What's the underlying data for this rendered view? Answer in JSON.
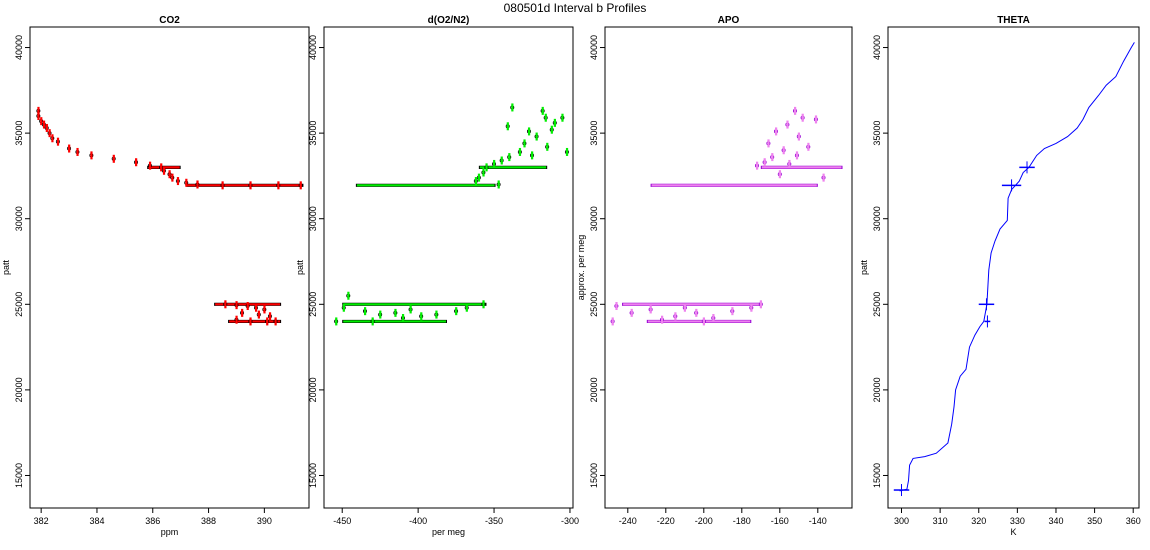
{
  "figure": {
    "title": "080501d   Interval b Profiles"
  },
  "chart_data": [
    {
      "type": "scatter",
      "title": "CO2",
      "xlabel": "ppm",
      "ylabel": "patt",
      "xlim": [
        381.6,
        391.6
      ],
      "ylim": [
        13100,
        41200
      ],
      "x_ticks": [
        382,
        384,
        386,
        388,
        390
      ],
      "y_ticks": [
        15000,
        20000,
        25000,
        30000,
        35000,
        40000
      ],
      "colors": {
        "primary": "#ff0000",
        "secondary": "#000000"
      },
      "series": [
        {
          "name": "",
          "points": [
            [
              381.9,
              36300
            ],
            [
              381.9,
              36000
            ],
            [
              382.0,
              35700
            ],
            [
              382.1,
              35500
            ],
            [
              382.2,
              35300
            ],
            [
              382.3,
              35000
            ],
            [
              382.4,
              34700
            ],
            [
              382.6,
              34500
            ],
            [
              383.0,
              34100
            ],
            [
              383.3,
              33900
            ],
            [
              383.8,
              33700
            ],
            [
              384.6,
              33500
            ],
            [
              385.4,
              33300
            ],
            [
              385.9,
              33100
            ],
            [
              386.3,
              33000
            ],
            [
              386.4,
              32800
            ],
            [
              386.6,
              32600
            ],
            [
              386.7,
              32400
            ],
            [
              386.9,
              32200
            ],
            [
              387.2,
              32100
            ],
            [
              387.6,
              32000
            ],
            [
              388.5,
              31950
            ],
            [
              389.5,
              31950
            ],
            [
              390.5,
              31950
            ],
            [
              391.3,
              31950
            ],
            [
              388.6,
              25000
            ],
            [
              389.0,
              24950
            ],
            [
              389.4,
              24900
            ],
            [
              389.7,
              24800
            ],
            [
              390.0,
              24700
            ],
            [
              389.2,
              24500
            ],
            [
              389.8,
              24400
            ],
            [
              390.2,
              24300
            ],
            [
              389.0,
              24100
            ],
            [
              389.5,
              24000
            ],
            [
              390.1,
              24000
            ],
            [
              390.4,
              24000
            ]
          ]
        }
      ],
      "segments": [
        {
          "y": 31950,
          "x": [
            387.2,
            391.4
          ]
        },
        {
          "y": 33000,
          "x": [
            385.8,
            387.0
          ]
        },
        {
          "y": 25000,
          "x": [
            388.2,
            390.6
          ]
        },
        {
          "y": 24000,
          "x": [
            388.7,
            390.6
          ]
        }
      ]
    },
    {
      "type": "scatter",
      "title": "d(O2/N2)",
      "xlabel": "per meg",
      "ylabel": "patt",
      "xlim": [
        -462,
        -298
      ],
      "ylim": [
        13100,
        41200
      ],
      "x_ticks": [
        -450,
        -400,
        -350,
        -300
      ],
      "y_ticks": [
        15000,
        20000,
        25000,
        30000,
        35000,
        40000
      ],
      "colors": {
        "primary": "#00ee00",
        "secondary": "#000000"
      },
      "series": [
        {
          "name": "",
          "points": [
            [
              -338,
              36500
            ],
            [
              -318,
              36300
            ],
            [
              -316,
              35900
            ],
            [
              -310,
              35600
            ],
            [
              -305,
              35900
            ],
            [
              -312,
              35200
            ],
            [
              -322,
              34800
            ],
            [
              -330,
              34400
            ],
            [
              -315,
              34200
            ],
            [
              -333,
              33900
            ],
            [
              -340,
              33600
            ],
            [
              -345,
              33400
            ],
            [
              -350,
              33200
            ],
            [
              -355,
              33000
            ],
            [
              -357,
              32700
            ],
            [
              -360,
              32400
            ],
            [
              -362,
              32200
            ],
            [
              -347,
              32000
            ],
            [
              -325,
              33700
            ],
            [
              -302,
              33900
            ],
            [
              -341,
              35400
            ],
            [
              -327,
              35100
            ],
            [
              -454,
              24000
            ],
            [
              -446,
              25500
            ],
            [
              -449,
              24800
            ],
            [
              -435,
              24600
            ],
            [
              -425,
              24400
            ],
            [
              -410,
              24200
            ],
            [
              -398,
              24300
            ],
            [
              -388,
              24400
            ],
            [
              -375,
              24600
            ],
            [
              -368,
              24800
            ],
            [
              -357,
              25000
            ],
            [
              -415,
              24500
            ],
            [
              -430,
              24000
            ],
            [
              -405,
              24700
            ]
          ]
        }
      ],
      "segments": [
        {
          "y": 31950,
          "x": [
            -441,
            -349
          ]
        },
        {
          "y": 33000,
          "x": [
            -360,
            -315
          ]
        },
        {
          "y": 25000,
          "x": [
            -450,
            -355
          ]
        },
        {
          "y": 24000,
          "x": [
            -450,
            -381
          ]
        }
      ]
    },
    {
      "type": "scatter",
      "title": "APO",
      "xlabel": "",
      "ylabel": "approx. per meg",
      "xlim": [
        -252,
        -122
      ],
      "ylim": [
        13100,
        41200
      ],
      "x_ticks": [
        -240,
        -220,
        -200,
        -180,
        -160,
        -140
      ],
      "y_ticks": [
        15000,
        20000,
        25000,
        30000,
        35000,
        40000
      ],
      "colors": {
        "primary": "#ee82ee",
        "secondary": "#9400d3"
      },
      "series": [
        {
          "name": "",
          "points": [
            [
              -152,
              36300
            ],
            [
              -148,
              35900
            ],
            [
              -141,
              35800
            ],
            [
              -156,
              35500
            ],
            [
              -162,
              35100
            ],
            [
              -150,
              34800
            ],
            [
              -166,
              34400
            ],
            [
              -145,
              34200
            ],
            [
              -158,
              34000
            ],
            [
              -164,
              33600
            ],
            [
              -168,
              33300
            ],
            [
              -155,
              33200
            ],
            [
              -172,
              33100
            ],
            [
              -151,
              33700
            ],
            [
              -160,
              32600
            ],
            [
              -137,
              32400
            ],
            [
              -246,
              24900
            ],
            [
              -248,
              24000
            ],
            [
              -238,
              24500
            ],
            [
              -228,
              24700
            ],
            [
              -215,
              24300
            ],
            [
              -204,
              24500
            ],
            [
              -195,
              24200
            ],
            [
              -185,
              24600
            ],
            [
              -175,
              24800
            ],
            [
              -170,
              25000
            ],
            [
              -222,
              24100
            ],
            [
              -210,
              24800
            ],
            [
              -200,
              24000
            ]
          ]
        }
      ],
      "segments": [
        {
          "y": 31950,
          "x": [
            -228,
            -140
          ]
        },
        {
          "y": 33000,
          "x": [
            -170,
            -127
          ]
        },
        {
          "y": 25000,
          "x": [
            -243,
            -170
          ]
        },
        {
          "y": 24000,
          "x": [
            -230,
            -175
          ]
        }
      ]
    },
    {
      "type": "line",
      "title": "THETA",
      "xlabel": "K",
      "ylabel": "patt",
      "xlim": [
        296.5,
        361.5
      ],
      "ylim": [
        13100,
        41200
      ],
      "x_ticks": [
        300,
        310,
        320,
        330,
        340,
        350,
        360
      ],
      "y_ticks": [
        15000,
        20000,
        25000,
        30000,
        35000,
        40000
      ],
      "colors": {
        "primary": "#0000ff"
      },
      "series": [
        {
          "name": "",
          "points": [
            [
              299.5,
              14100
            ],
            [
              301.4,
              14200
            ],
            [
              301.8,
              14700
            ],
            [
              302.1,
              15600
            ],
            [
              303.0,
              16000
            ],
            [
              306.0,
              16100
            ],
            [
              309.0,
              16300
            ],
            [
              312.0,
              16900
            ],
            [
              313.0,
              18000
            ],
            [
              313.6,
              19000
            ],
            [
              314.0,
              20000
            ],
            [
              315.2,
              20800
            ],
            [
              316.7,
              21200
            ],
            [
              317.6,
              22500
            ],
            [
              319.0,
              23200
            ],
            [
              320.3,
              23700
            ],
            [
              321.3,
              24000
            ],
            [
              322.1,
              25000
            ],
            [
              322.6,
              27000
            ],
            [
              323.2,
              28000
            ],
            [
              324.2,
              28700
            ],
            [
              325.5,
              29400
            ],
            [
              327.4,
              29900
            ],
            [
              327.6,
              31200
            ],
            [
              328.5,
              31700
            ],
            [
              330.5,
              32200
            ],
            [
              331.5,
              32700
            ],
            [
              333.0,
              33000
            ],
            [
              335.0,
              33700
            ],
            [
              337.0,
              34100
            ],
            [
              340.0,
              34400
            ],
            [
              343.0,
              34800
            ],
            [
              345.5,
              35300
            ],
            [
              347.0,
              35800
            ],
            [
              348.5,
              36500
            ],
            [
              351.0,
              37200
            ],
            [
              353.0,
              37800
            ],
            [
              355.5,
              38300
            ],
            [
              357.5,
              39200
            ],
            [
              359.5,
              40000
            ],
            [
              360.3,
              40300
            ]
          ]
        }
      ],
      "segments": [
        {
          "y": 31950,
          "x": [
            326.0,
            331.0
          ]
        },
        {
          "y": 33000,
          "x": [
            330.5,
            334.5
          ]
        },
        {
          "y": 25000,
          "x": [
            320.0,
            324.0
          ]
        },
        {
          "y": 24000,
          "x": [
            321.5,
            323.0
          ]
        },
        {
          "y": 14150,
          "x": [
            298.0,
            302.0
          ]
        }
      ]
    }
  ]
}
